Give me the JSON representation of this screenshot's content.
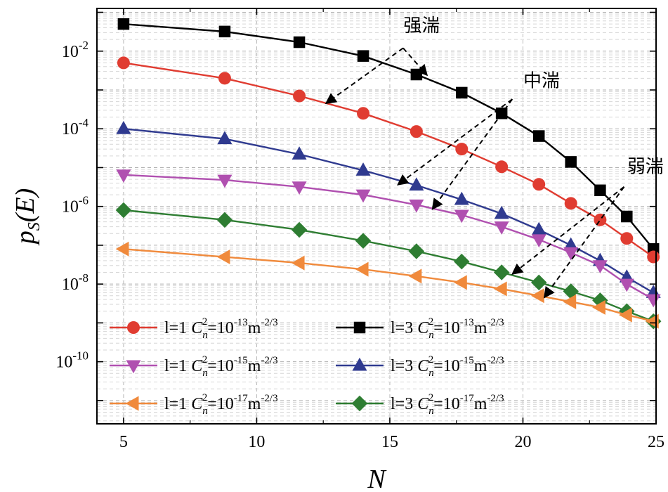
{
  "chart_data": {
    "type": "line",
    "xlabel": "N",
    "ylabel": "p_S(E)",
    "xlim": [
      4,
      25
    ],
    "ylim_exp": [
      -11.6,
      -0.9
    ],
    "yscale": "log",
    "x_ticks": [
      5,
      10,
      15,
      20,
      25
    ],
    "y_tick_exponents": [
      -2,
      -4,
      -6,
      -8,
      -10
    ],
    "grid": true,
    "legend_position": "bottom-left",
    "legend_entries": [
      {
        "l": "l=1",
        "c": "C",
        "sub": "n",
        "sup2": "2",
        "eq": "=10",
        "exp": "-13",
        "unit": "m",
        "unit_exp": "-2/3"
      },
      {
        "l": "l=3",
        "c": "C",
        "sub": "n",
        "sup2": "2",
        "eq": "=10",
        "exp": "-13",
        "unit": "m",
        "unit_exp": "-2/3"
      },
      {
        "l": "l=1",
        "c": "C",
        "sub": "n",
        "sup2": "2",
        "eq": "=10",
        "exp": "-15",
        "unit": "m",
        "unit_exp": "-2/3"
      },
      {
        "l": "l=3",
        "c": "C",
        "sub": "n",
        "sup2": "2",
        "eq": "=10",
        "exp": "-15",
        "unit": "m",
        "unit_exp": "-2/3"
      },
      {
        "l": "l=1",
        "c": "C",
        "sub": "n",
        "sup2": "2",
        "eq": "=10",
        "exp": "-17",
        "unit": "m",
        "unit_exp": "-2/3"
      },
      {
        "l": "l=3",
        "c": "C",
        "sub": "n",
        "sup2": "2",
        "eq": "=10",
        "exp": "-17",
        "unit": "m",
        "unit_exp": "-2/3"
      }
    ],
    "series": [
      {
        "color": "#000000",
        "marker": "square",
        "x": [
          5,
          8.8,
          11.6,
          14,
          16,
          17.7,
          19.2,
          20.6,
          21.8,
          22.9,
          23.9,
          24.9
        ],
        "y": [
          0.05,
          0.032,
          0.017,
          0.0075,
          0.0025,
          0.00085,
          0.00025,
          6.5e-05,
          1.4e-05,
          2.6e-06,
          5.5e-07,
          8e-08
        ]
      },
      {
        "color": "#e03c31",
        "marker": "circle",
        "x": [
          5,
          8.8,
          11.6,
          14,
          16,
          17.7,
          19.2,
          20.6,
          21.8,
          22.9,
          23.9,
          24.9
        ],
        "y": [
          0.005,
          0.002,
          0.0007,
          0.00025,
          8.5e-05,
          3e-05,
          1.05e-05,
          3.7e-06,
          1.2e-06,
          4.5e-07,
          1.5e-07,
          5e-08
        ]
      },
      {
        "color": "#2f3a8f",
        "marker": "triangle-up",
        "x": [
          5,
          8.8,
          11.6,
          14,
          16,
          17.7,
          19.2,
          20.6,
          21.8,
          22.9,
          23.9,
          24.9
        ],
        "y": [
          0.0001,
          5.5e-05,
          2.2e-05,
          8.5e-06,
          3.5e-06,
          1.5e-06,
          6.5e-07,
          2.5e-07,
          1e-07,
          4e-08,
          1.5e-08,
          6e-09
        ]
      },
      {
        "color": "#b050b0",
        "marker": "triangle-down",
        "x": [
          5,
          8.8,
          11.6,
          14,
          16,
          17.7,
          19.2,
          20.6,
          21.8,
          22.9,
          23.9,
          24.9
        ],
        "y": [
          6.5e-06,
          4.8e-06,
          3.2e-06,
          2e-06,
          1.1e-06,
          6e-07,
          3e-07,
          1.4e-07,
          6.5e-08,
          3e-08,
          1e-08,
          4e-09
        ]
      },
      {
        "color": "#2e7d32",
        "marker": "diamond",
        "x": [
          5,
          8.8,
          11.6,
          14,
          16,
          17.7,
          19.2,
          20.6,
          21.8,
          22.9,
          23.9,
          24.9
        ],
        "y": [
          8e-07,
          4.5e-07,
          2.5e-07,
          1.3e-07,
          7e-08,
          3.8e-08,
          2e-08,
          1.1e-08,
          6.5e-09,
          3.8e-09,
          2e-09,
          1.1e-09
        ]
      },
      {
        "color": "#f08a3c",
        "marker": "triangle-left",
        "x": [
          5,
          8.8,
          11.6,
          14,
          16,
          17.7,
          19.2,
          20.6,
          21.8,
          22.9,
          23.9,
          24.9
        ],
        "y": [
          8e-08,
          5e-08,
          3.5e-08,
          2.4e-08,
          1.6e-08,
          1.1e-08,
          7.5e-09,
          5e-09,
          3.5e-09,
          2.5e-09,
          1.6e-09,
          1.1e-09
        ]
      }
    ],
    "annotations": [
      {
        "text": "强湍",
        "x": 16.2,
        "y": 0.032
      },
      {
        "text": "中湍",
        "x": 20.7,
        "y": 0.0012
      },
      {
        "text": "弱湍",
        "x": 24.6,
        "y": 7.5e-06
      }
    ],
    "arrows": [
      {
        "from": [
          15.5,
          0.012
        ],
        "to": [
          12.6,
          0.00045
        ]
      },
      {
        "from": [
          15.5,
          0.012
        ],
        "to": [
          16.4,
          0.0024
        ]
      },
      {
        "from": [
          19.6,
          0.00058
        ],
        "to": [
          15.3,
          3.6e-06
        ]
      },
      {
        "from": [
          19.6,
          0.00058
        ],
        "to": [
          16.6,
          8.5e-07
        ]
      },
      {
        "from": [
          23.8,
          3.2e-06
        ],
        "to": [
          19.6,
          1.8e-08
        ]
      },
      {
        "from": [
          23.8,
          3.2e-06
        ],
        "to": [
          20.8,
          4.5e-09
        ]
      }
    ]
  }
}
